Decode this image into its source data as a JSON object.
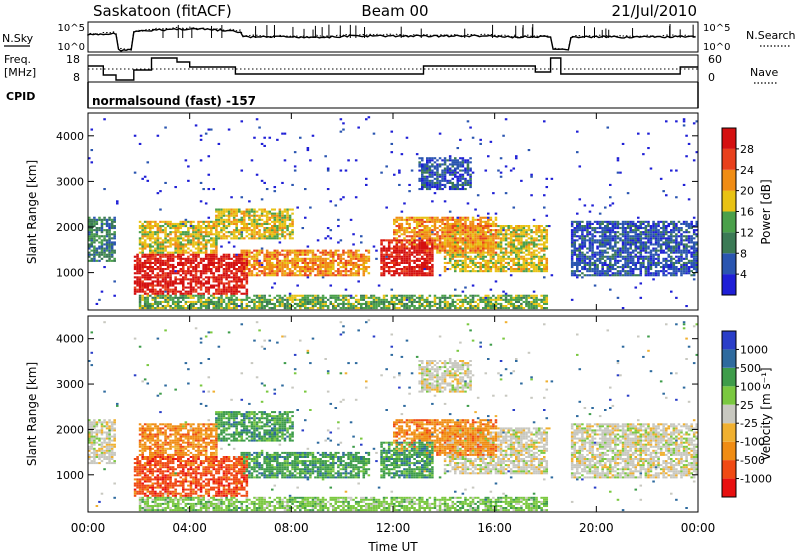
{
  "header": {
    "station": "Saskatoon (fitACF)",
    "beam": "Beam 00",
    "date": "21/Jul/2010"
  },
  "top_panels": {
    "nsky_label": "N.Sky",
    "nsky_ticks": [
      "10^5",
      "10^0"
    ],
    "nsearch_label": "N.Search",
    "nsearch_ticks": [
      "10^5",
      "10^0"
    ],
    "freq_label_1": "Freq.",
    "freq_label_2": "[MHz]",
    "freq_ticks": [
      "18",
      "8"
    ],
    "nave_label": "Nave",
    "nave_ticks": [
      "60",
      "0"
    ],
    "cpid_label": "CPID",
    "cpid_text": "normalsound (fast) -157"
  },
  "colors": {
    "power": [
      "#1f1fd6",
      "#2a55b0",
      "#3b7a55",
      "#4aa04a",
      "#e8c214",
      "#f08c14",
      "#e8401c",
      "#d41010"
    ],
    "velocity": [
      "#e81010",
      "#f04a14",
      "#f08c14",
      "#f0b030",
      "#c8c8c0",
      "#7ac840",
      "#3e9c4a",
      "#2e6a9e",
      "#2a3ec8"
    ]
  },
  "chart_data": [
    {
      "type": "heatmap",
      "title": "Power",
      "xlabel": "Time UT",
      "ylabel": "Slant Range [km]",
      "x_ticks": [
        "00:00",
        "04:00",
        "08:00",
        "12:00",
        "16:00",
        "20:00",
        "00:00"
      ],
      "y_ticks": [
        "1000",
        "2000",
        "3000",
        "4000"
      ],
      "ylim": [
        180,
        4500
      ],
      "colorbar_label": "Power [dB]",
      "colorbar_ticks": [
        "4",
        "8",
        "12",
        "16",
        "20",
        "24",
        "28"
      ],
      "colorbar_range": [
        0,
        30
      ]
    },
    {
      "type": "heatmap",
      "title": "Velocity",
      "xlabel": "Time UT",
      "ylabel": "Slant Range [km]",
      "x_ticks": [
        "00:00",
        "04:00",
        "08:00",
        "12:00",
        "16:00",
        "20:00",
        "00:00"
      ],
      "y_ticks": [
        "1000",
        "2000",
        "3000",
        "4000"
      ],
      "ylim": [
        180,
        4500
      ],
      "colorbar_label": "Velocity [m s⁻¹]",
      "colorbar_ticks": [
        "1000",
        "500",
        "100",
        "25",
        "-25",
        "-100",
        "-500",
        "-1000"
      ]
    }
  ]
}
